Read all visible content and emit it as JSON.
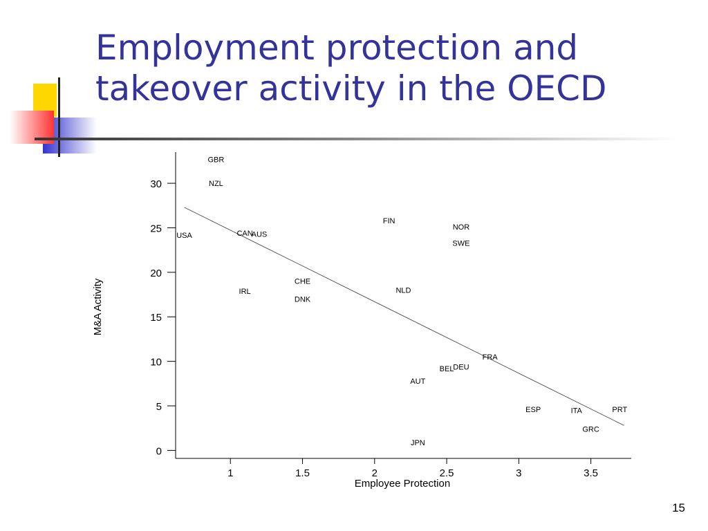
{
  "slide": {
    "title_line1": "Employment protection and",
    "title_line2": "takeover activity in the OECD",
    "page_number": "15"
  },
  "colors": {
    "title": "#333399",
    "deco_yellow": "#ffd700",
    "deco_red": "#ff3333",
    "deco_blue": "#3333cc"
  },
  "chart_data": {
    "type": "scatter",
    "xlabel": "Employee Protection",
    "ylabel": "M&A Activity",
    "xlim": [
      0.62,
      3.78
    ],
    "ylim": [
      -0.9,
      33.5
    ],
    "xticks": [
      1,
      1.5,
      2,
      2.5,
      3,
      3.5
    ],
    "xtick_labels": [
      "1",
      "1.5",
      "2",
      "2.5",
      "3",
      "3.5"
    ],
    "yticks": [
      0,
      5,
      10,
      15,
      20,
      25,
      30
    ],
    "ytick_labels": [
      "0",
      "5",
      "10",
      "15",
      "20",
      "25",
      "30"
    ],
    "grid": false,
    "points": [
      {
        "label": "GBR",
        "x": 0.9,
        "y": 32.7
      },
      {
        "label": "NZL",
        "x": 0.9,
        "y": 30.0
      },
      {
        "label": "USA",
        "x": 0.68,
        "y": 24.2
      },
      {
        "label": "CAN",
        "x": 1.1,
        "y": 24.4
      },
      {
        "label": "AUS",
        "x": 1.2,
        "y": 24.3
      },
      {
        "label": "IRL",
        "x": 1.1,
        "y": 17.9
      },
      {
        "label": "CHE",
        "x": 1.5,
        "y": 19.0
      },
      {
        "label": "DNK",
        "x": 1.5,
        "y": 17.0
      },
      {
        "label": "FIN",
        "x": 2.1,
        "y": 25.8
      },
      {
        "label": "NOR",
        "x": 2.6,
        "y": 25.1
      },
      {
        "label": "SWE",
        "x": 2.6,
        "y": 23.3
      },
      {
        "label": "NLD",
        "x": 2.2,
        "y": 18.0
      },
      {
        "label": "FRA",
        "x": 2.8,
        "y": 10.5
      },
      {
        "label": "BEL",
        "x": 2.5,
        "y": 9.2
      },
      {
        "label": "DEU",
        "x": 2.6,
        "y": 9.4
      },
      {
        "label": "AUT",
        "x": 2.3,
        "y": 7.8
      },
      {
        "label": "ESP",
        "x": 3.1,
        "y": 4.6
      },
      {
        "label": "ITA",
        "x": 3.4,
        "y": 4.5
      },
      {
        "label": "PRT",
        "x": 3.7,
        "y": 4.6
      },
      {
        "label": "GRC",
        "x": 3.5,
        "y": 2.4
      },
      {
        "label": "JPN",
        "x": 2.3,
        "y": 0.9
      }
    ],
    "fit_line": {
      "x": [
        0.68,
        3.73
      ],
      "y": [
        27.3,
        2.8
      ]
    }
  }
}
